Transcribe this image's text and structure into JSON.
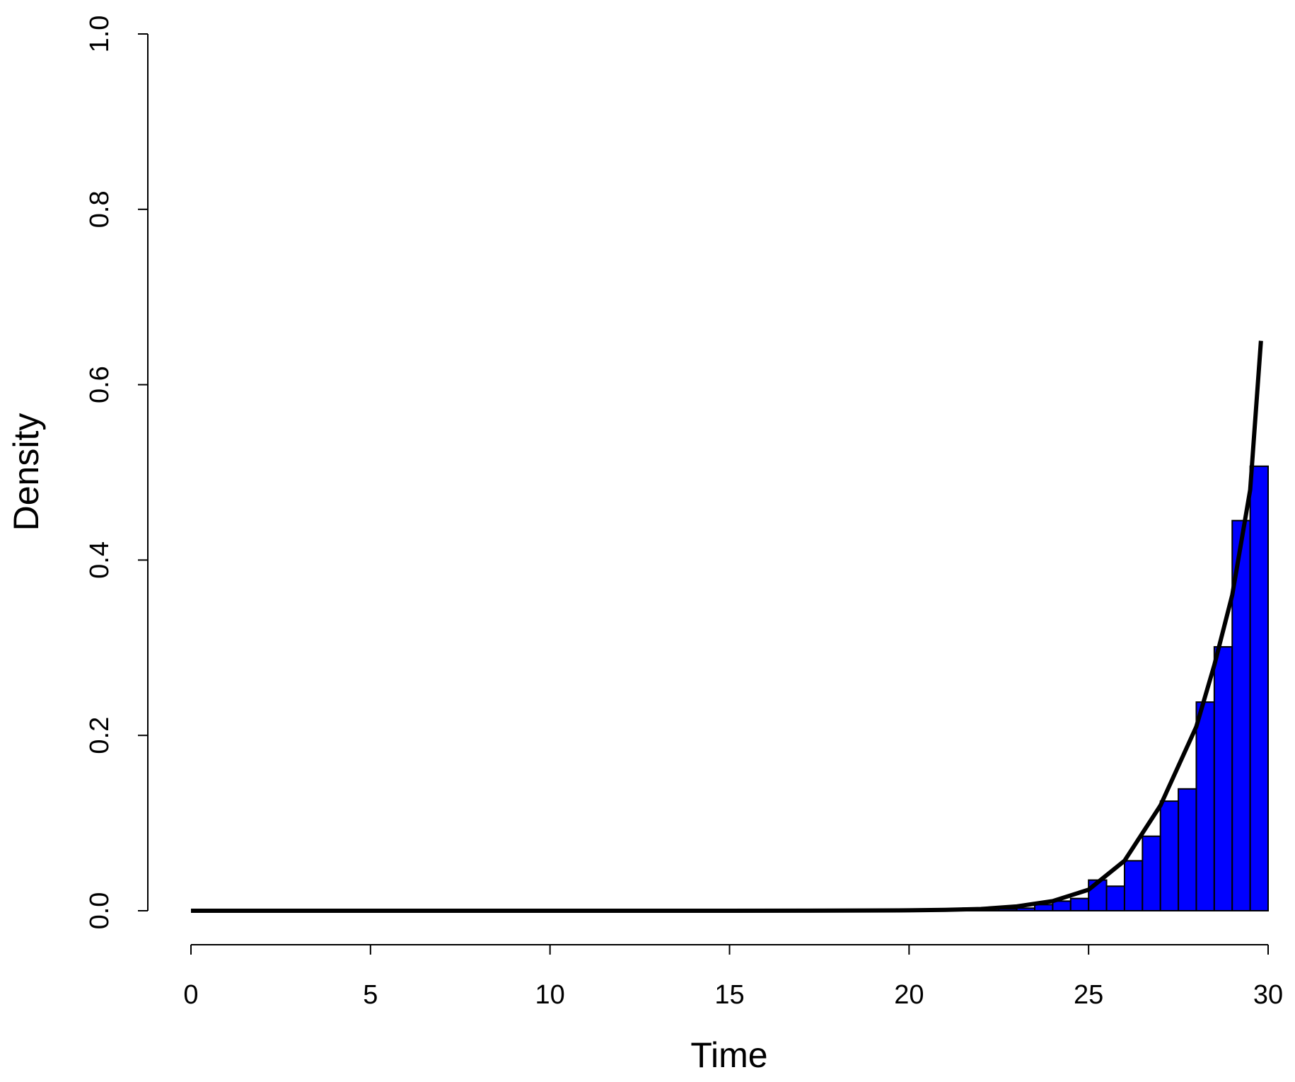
{
  "chart_data": {
    "type": "histogram",
    "xlabel": "Time",
    "ylabel": "Density",
    "bins": [
      0,
      0.5,
      1,
      1.5,
      2,
      2.5,
      3,
      3.5,
      4,
      4.5,
      5,
      5.5,
      6,
      6.5,
      7,
      7.5,
      8,
      8.5,
      9,
      9.5,
      10,
      10.5,
      11,
      11.5,
      12,
      12.5,
      13,
      13.5,
      14,
      14.5,
      15,
      15.5,
      16,
      16.5,
      17,
      17.5,
      18,
      18.5,
      19,
      19.5,
      20,
      20.5,
      21,
      21.5,
      22,
      22.5,
      23,
      23.5,
      24,
      24.5,
      25,
      25.5,
      26,
      26.5,
      27,
      27.5,
      28,
      28.5,
      29,
      29.5,
      30
    ],
    "values": [
      0,
      0,
      0,
      0,
      0,
      0,
      0,
      0,
      0,
      0,
      0,
      0,
      0,
      0,
      0,
      0,
      0,
      0,
      0,
      0,
      0,
      0,
      0,
      0,
      0,
      0,
      0,
      0,
      0,
      0,
      0,
      0,
      0,
      0,
      0,
      0,
      0,
      0,
      0,
      0,
      0,
      0,
      0,
      0.003,
      0.002,
      0.002,
      0.003,
      0.007,
      0.011,
      0.014,
      0.035,
      0.028,
      0.057,
      0.085,
      0.125,
      0.139,
      0.238,
      0.301,
      0.445,
      0.507
    ],
    "color": "#0000ff",
    "curve": {
      "color": "#000000",
      "x": [
        0,
        5,
        10,
        15,
        17,
        19,
        20,
        21,
        22,
        23,
        24,
        25,
        26,
        27,
        28,
        28.5,
        29,
        29.5,
        29.8
      ],
      "values": [
        0,
        0,
        0,
        0,
        0.0001,
        0.0003,
        0.0005,
        0.001,
        0.002,
        0.005,
        0.011,
        0.024,
        0.057,
        0.12,
        0.21,
        0.28,
        0.36,
        0.48,
        0.65
      ]
    },
    "xlim": [
      0,
      30
    ],
    "xticks": [
      0,
      5,
      10,
      15,
      20,
      25,
      30
    ],
    "ylim": [
      0,
      1
    ],
    "yticks": [
      {
        "value": 0,
        "label": "0.0"
      },
      0.2,
      0.4,
      0.6,
      0.8,
      {
        "value": 1,
        "label": "1.0"
      }
    ]
  }
}
